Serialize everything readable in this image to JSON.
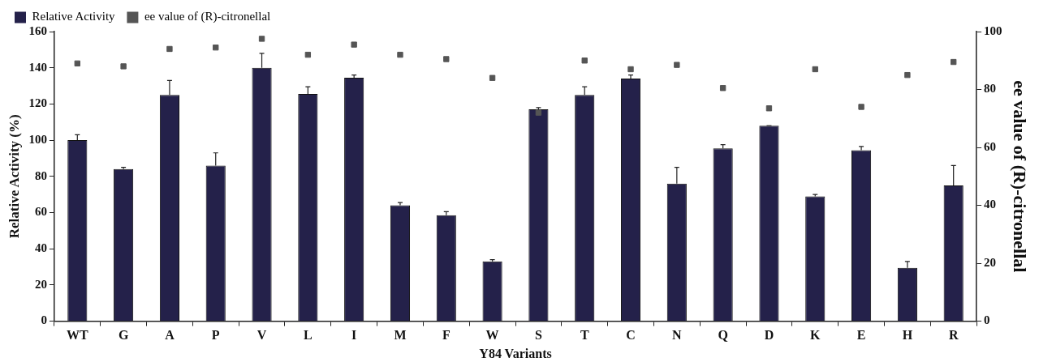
{
  "chart_data": {
    "type": "bar",
    "xlabel": "Y84 Variants",
    "ylabel": "Relative Activity (%)",
    "y2label": "ee value of (R)-citronellal",
    "categories": [
      "WT",
      "G",
      "A",
      "P",
      "V",
      "L",
      "I",
      "M",
      "F",
      "W",
      "S",
      "T",
      "C",
      "N",
      "Q",
      "D",
      "K",
      "E",
      "H",
      "R"
    ],
    "series": [
      {
        "name": "Relative Activity",
        "color": "#24214a",
        "values": [
          100,
          84,
          125,
          86,
          140,
          125.5,
          134.5,
          64,
          58.5,
          33,
          117,
          125,
          134,
          76,
          95.5,
          108,
          69,
          94.5,
          29.5,
          75
        ],
        "errors": [
          3,
          1,
          8,
          7,
          8,
          4,
          1.5,
          1.5,
          2,
          1,
          1,
          4.5,
          2,
          9,
          2,
          0,
          1,
          2,
          3.5,
          11
        ]
      },
      {
        "name": "ee value of (R)-citronellal",
        "type": "scatter",
        "axis": "y2",
        "color": "#555555",
        "values": [
          89,
          88,
          94,
          94.5,
          97.5,
          92,
          95.5,
          92,
          90.5,
          84,
          72,
          90,
          87,
          88.5,
          80.5,
          73.5,
          87,
          74,
          85,
          89.5
        ]
      }
    ],
    "ylim": [
      0,
      160
    ],
    "yticks": [
      0,
      20,
      40,
      60,
      80,
      100,
      120,
      140,
      160
    ],
    "y2lim": [
      0,
      100
    ],
    "y2ticks": [
      0,
      20,
      40,
      60,
      80,
      100
    ],
    "marker": "square",
    "legend": "top left",
    "grid": false
  }
}
